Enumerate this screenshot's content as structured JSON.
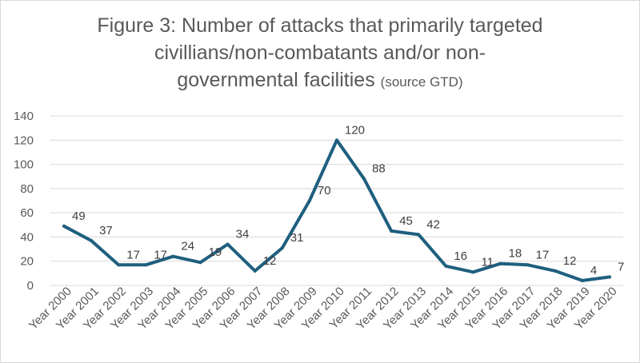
{
  "chart_data": {
    "type": "line",
    "title_lines": [
      "Figure 3: Number of attacks that primarily targeted",
      "civillians/non-combatants and/or non-",
      "governmental facilities"
    ],
    "title_suffix": "(source GTD)",
    "xlabel": "",
    "ylabel": "",
    "ylim": [
      0,
      140
    ],
    "yticks": [
      0,
      20,
      40,
      60,
      80,
      100,
      120,
      140
    ],
    "grid": true,
    "legend": "none",
    "categories": [
      "Year 2000",
      "Year 2001",
      "Year 2002",
      "Year 2003",
      "Year 2004",
      "Year 2005",
      "Year 2006",
      "Year 2007",
      "Year 2008",
      "Year 2009",
      "Year 2010",
      "Year 2011",
      "Year 2012",
      "Year 2013",
      "Year 2014",
      "Year 2015",
      "Year 2016",
      "Year 2017",
      "Year 2018",
      "Year 2019",
      "Year 2020"
    ],
    "values": [
      49,
      37,
      17,
      17,
      24,
      19,
      34,
      12,
      31,
      70,
      120,
      88,
      45,
      42,
      16,
      11,
      18,
      17,
      12,
      4,
      7
    ],
    "data_labels": [
      "49",
      "37",
      "17",
      "17",
      "24",
      "19",
      "34",
      "12",
      "31",
      "70",
      "120",
      "88",
      "45",
      "42",
      "16",
      "11",
      "18",
      "17",
      "12",
      "4",
      "7"
    ],
    "line_color": "#1f5f7f"
  }
}
